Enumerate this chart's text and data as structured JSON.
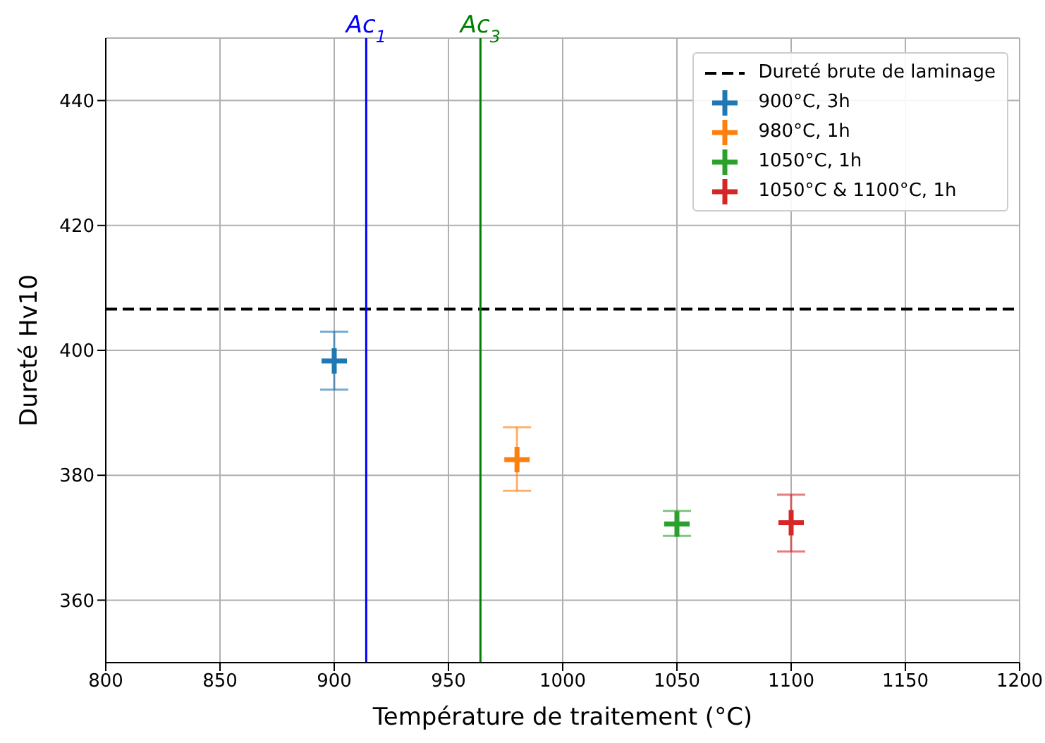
{
  "chart_data": {
    "type": "scatter",
    "xlabel": "Température de traitement (°C)",
    "ylabel": "Dureté Hv10",
    "xlim": [
      800,
      1200
    ],
    "xticks": [
      800,
      850,
      900,
      950,
      1000,
      1050,
      1100,
      1150,
      1200
    ],
    "ylim": [
      350,
      450
    ],
    "yticks": [
      360,
      380,
      400,
      420,
      440
    ],
    "grid": true,
    "legend": "top right",
    "marker": "cross",
    "series": [
      {
        "name": "900°C, 3h",
        "color": "#1f77b4",
        "x": [
          900
        ],
        "values": [
          398.3
        ],
        "errors": [
          [
            393.7,
            403
          ]
        ]
      },
      {
        "name": "980°C, 1h",
        "color": "#ff7f0e",
        "x": [
          980
        ],
        "values": [
          382.5
        ],
        "errors": [
          [
            377.5,
            387.7
          ]
        ]
      },
      {
        "name": "1050°C, 1h",
        "color": "#2ca02c",
        "x": [
          1050
        ],
        "values": [
          372.2
        ],
        "errors": [
          [
            370.3,
            374.3
          ]
        ]
      },
      {
        "name": "1050°C & 1100°C, 1h",
        "color": "#d62728",
        "x": [
          1100
        ],
        "values": [
          372.4
        ],
        "errors": [
          [
            367.8,
            376.9
          ]
        ]
      }
    ],
    "ref_lines": [
      {
        "axis": "y",
        "value": 406.6,
        "label": "Dureté brute de laminage",
        "color": "#000000",
        "line_style": "dashed"
      },
      {
        "axis": "x",
        "value": 914,
        "label": "Ac$_{1}$",
        "color": "#0000ff",
        "line_style": "solid"
      },
      {
        "axis": "x",
        "value": 964,
        "label": "Ac$_{3}$",
        "color": "#008000",
        "line_style": "solid"
      }
    ]
  }
}
